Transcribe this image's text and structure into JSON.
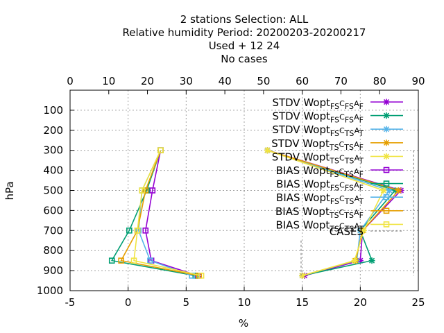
{
  "chart_data": {
    "type": "line",
    "title_lines": [
      "2 stations Selection: ALL",
      "Relative humidity  Period: 20200203-20200217",
      "Used   + 12 24",
      "No cases"
    ],
    "xlabel": "%",
    "ylabel": "hPa",
    "xlim": [
      -5,
      25
    ],
    "x2lim": [
      0,
      90
    ],
    "ylim": [
      1000,
      0
    ],
    "x_ticks": [
      "-5",
      "0",
      "5",
      "10",
      "15",
      "20",
      "25"
    ],
    "x2_ticks": [
      "0",
      "10",
      "20",
      "30",
      "40",
      "50",
      "60",
      "70",
      "80",
      "90"
    ],
    "y_ticks": [
      "100",
      "200",
      "300",
      "400",
      "500",
      "600",
      "700",
      "800",
      "900",
      "1000"
    ],
    "grid": true,
    "legend_position": "top-right",
    "series": [
      {
        "kind": "STDV",
        "sub1": "FS",
        "sub2": "FS",
        "sub3": "F",
        "color": "#9400d3",
        "marker": "x",
        "points": [
          [
            12.0,
            300
          ],
          [
            23.5,
            500
          ],
          [
            20.2,
            700
          ],
          [
            20.0,
            850
          ],
          [
            15.2,
            925
          ]
        ]
      },
      {
        "kind": "STDV",
        "sub1": "FS",
        "sub2": "FS",
        "sub3": "F",
        "color": "#009e73",
        "marker": "x",
        "points": [
          [
            12.0,
            300
          ],
          [
            23.0,
            500
          ],
          [
            20.0,
            700
          ],
          [
            21.0,
            850
          ],
          [
            15.0,
            925
          ]
        ]
      },
      {
        "kind": "STDV",
        "sub1": "FS",
        "sub2": "TS",
        "sub3": "T",
        "color": "#56b4e9",
        "marker": "x",
        "points": [
          [
            12.0,
            300
          ],
          [
            22.5,
            500
          ],
          [
            20.0,
            700
          ],
          [
            19.7,
            850
          ],
          [
            15.0,
            925
          ]
        ]
      },
      {
        "kind": "STDV",
        "sub1": "TS",
        "sub2": "TS",
        "sub3": "F",
        "color": "#e69f00",
        "marker": "x",
        "points": [
          [
            12.0,
            300
          ],
          [
            23.3,
            500
          ],
          [
            20.2,
            700
          ],
          [
            19.6,
            850
          ],
          [
            15.0,
            925
          ]
        ]
      },
      {
        "kind": "STDV",
        "sub1": "TS",
        "sub2": "TS",
        "sub3": "T",
        "color": "#f0e442",
        "marker": "x",
        "points": [
          [
            12.0,
            300
          ],
          [
            22.0,
            500
          ],
          [
            20.3,
            700
          ],
          [
            19.5,
            850
          ],
          [
            15.0,
            925
          ]
        ]
      },
      {
        "kind": "BIAS",
        "sub1": "FS",
        "sub2": "TS",
        "sub3": "F",
        "color": "#9400d3",
        "marker": "square",
        "points": [
          [
            2.8,
            300
          ],
          [
            2.1,
            500
          ],
          [
            1.5,
            700
          ],
          [
            2.0,
            850
          ],
          [
            6.0,
            925
          ]
        ]
      },
      {
        "kind": "BIAS",
        "sub1": "FS",
        "sub2": "FS",
        "sub3": "F",
        "color": "#009e73",
        "marker": "square",
        "points": [
          [
            2.8,
            300
          ],
          [
            1.6,
            500
          ],
          [
            0.1,
            700
          ],
          [
            -1.4,
            850
          ],
          [
            5.8,
            925
          ]
        ]
      },
      {
        "kind": "BIAS",
        "sub1": "FS",
        "sub2": "TS",
        "sub3": "T",
        "color": "#56b4e9",
        "marker": "square",
        "points": [
          [
            2.8,
            300
          ],
          [
            1.2,
            500
          ],
          [
            0.9,
            700
          ],
          [
            1.9,
            850
          ],
          [
            5.5,
            925
          ]
        ]
      },
      {
        "kind": "BIAS",
        "sub1": "TS",
        "sub2": "TS",
        "sub3": "F",
        "color": "#e69f00",
        "marker": "square",
        "points": [
          [
            2.8,
            300
          ],
          [
            1.5,
            500
          ],
          [
            0.8,
            700
          ],
          [
            -0.6,
            850
          ],
          [
            6.1,
            925
          ]
        ]
      },
      {
        "kind": "BIAS",
        "sub1": "TS",
        "sub2": "TS",
        "sub3": "T",
        "color": "#f0e442",
        "marker": "square",
        "points": [
          [
            2.8,
            300
          ],
          [
            1.2,
            500
          ],
          [
            0.8,
            700
          ],
          [
            0.5,
            850
          ],
          [
            6.3,
            925
          ]
        ]
      }
    ],
    "legend_prefix": "Wopt",
    "legend_c": "C",
    "legend_a": "A",
    "cases_label": "CASES",
    "cases_color": "#888888"
  }
}
